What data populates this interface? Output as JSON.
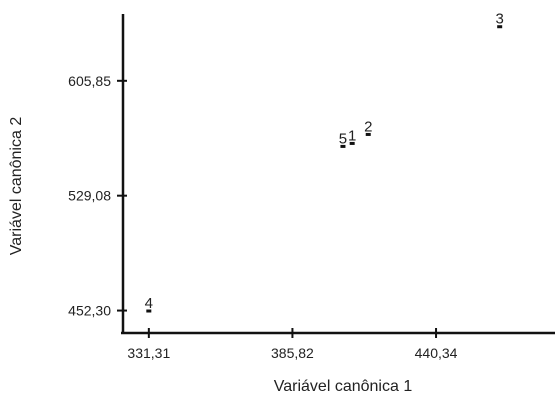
{
  "chart_data": {
    "type": "scatter",
    "xlabel": "Variável canônica 1",
    "ylabel": "Variável canônica 2",
    "x_ticks": [
      "331,31",
      "385,82",
      "440,34"
    ],
    "x_tick_values": [
      331.31,
      385.82,
      440.34
    ],
    "y_ticks": [
      "452,30",
      "529,08",
      "605,85"
    ],
    "y_tick_values": [
      452.3,
      529.08,
      605.85
    ],
    "xlim": [
      321.5,
      485.5
    ],
    "ylim": [
      437.3,
      650.5
    ],
    "points": [
      {
        "label": "1",
        "x": 408.5,
        "y": 564.0
      },
      {
        "label": "2",
        "x": 414.6,
        "y": 570.0
      },
      {
        "label": "3",
        "x": 464.5,
        "y": 642.0
      },
      {
        "label": "4",
        "x": 331.3,
        "y": 452.0
      },
      {
        "label": "5",
        "x": 405.0,
        "y": 562.0
      }
    ],
    "grid": false
  }
}
